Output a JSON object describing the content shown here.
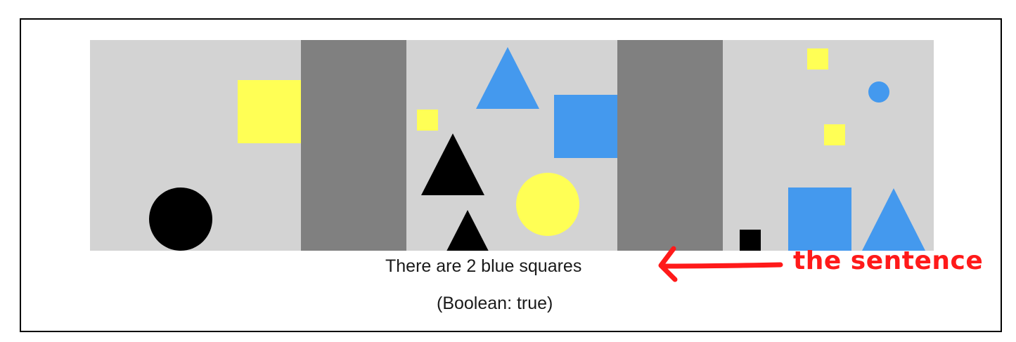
{
  "sentence": "There are 2 blue squares",
  "boolean_label": "(Boolean: true)",
  "annotation": {
    "label": "the sentence",
    "color": "#ff1a1a"
  },
  "colors": {
    "background": "#d3d3d3",
    "divider": "#808080",
    "yellow": "#ffff55",
    "blue": "#4499ee",
    "black": "#000000"
  },
  "panels": [
    {
      "id": "panel-1",
      "shapes": [
        "black-circle",
        "yellow-square"
      ]
    },
    {
      "id": "panel-2",
      "shapes": [
        "blue-triangle",
        "yellow-square",
        "black-triangle",
        "blue-square",
        "yellow-circle",
        "black-triangle"
      ]
    },
    {
      "id": "panel-3",
      "shapes": [
        "yellow-square",
        "blue-circle",
        "yellow-square",
        "black-square",
        "blue-square",
        "blue-triangle"
      ]
    }
  ]
}
